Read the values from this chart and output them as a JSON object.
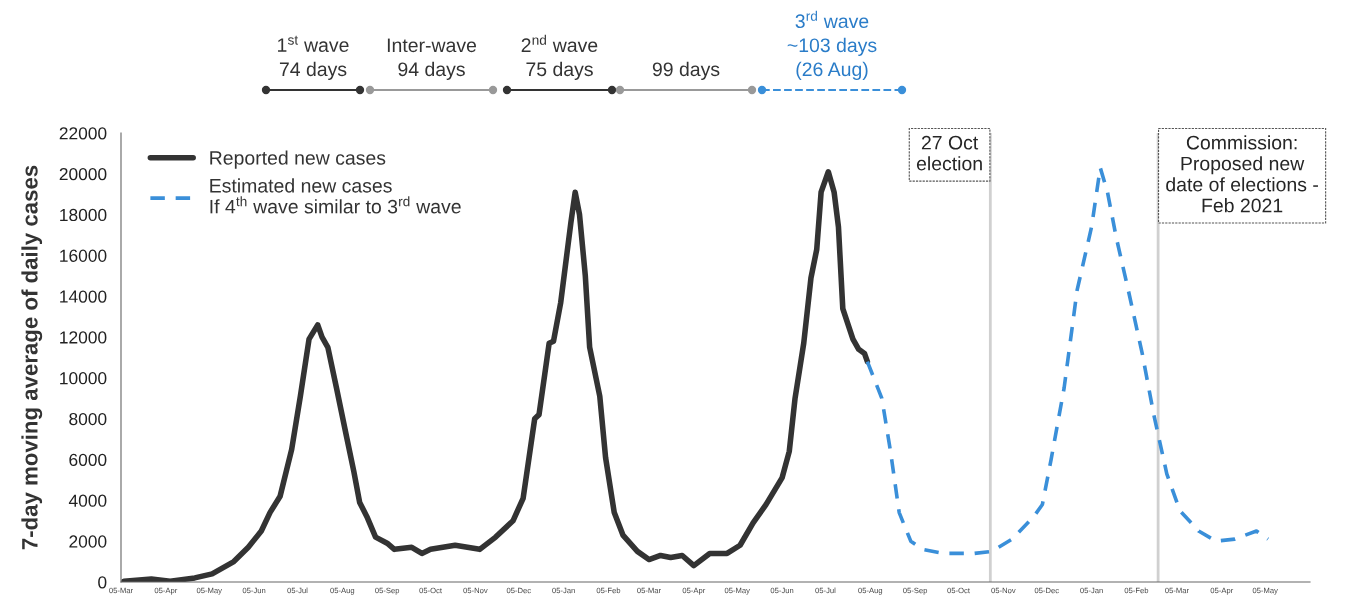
{
  "chart_data": {
    "type": "line",
    "ylabel": "7-day moving average of daily cases",
    "xlim": [
      "2020-03-05",
      "2022-06-05"
    ],
    "ylim": [
      0,
      22000
    ],
    "xticks": [
      {
        "value": "2020-03-05",
        "label": "05-Mar"
      },
      {
        "value": "2020-04-05",
        "label": "05-Apr"
      },
      {
        "value": "2020-05-05",
        "label": "05-May"
      },
      {
        "value": "2020-06-05",
        "label": "05-Jun"
      },
      {
        "value": "2020-07-05",
        "label": "05-Jul"
      },
      {
        "value": "2020-08-05",
        "label": "05-Aug"
      },
      {
        "value": "2020-09-05",
        "label": "05-Sep"
      },
      {
        "value": "2020-10-05",
        "label": "05-Oct"
      },
      {
        "value": "2020-11-05",
        "label": "05-Nov"
      },
      {
        "value": "2020-12-05",
        "label": "05-Dec"
      },
      {
        "value": "2021-01-05",
        "label": "05-Jan"
      },
      {
        "value": "2021-02-05",
        "label": "05-Feb"
      },
      {
        "value": "2021-03-05",
        "label": "05-Mar"
      },
      {
        "value": "2021-04-05",
        "label": "05-Apr"
      },
      {
        "value": "2021-05-05",
        "label": "05-May"
      },
      {
        "value": "2021-06-05",
        "label": "05-Jun"
      },
      {
        "value": "2021-07-05",
        "label": "05-Jul"
      },
      {
        "value": "2021-08-05",
        "label": "05-Aug"
      },
      {
        "value": "2021-09-05",
        "label": "05-Sep"
      },
      {
        "value": "2021-10-05",
        "label": "05-Oct"
      },
      {
        "value": "2021-11-05",
        "label": "05-Nov"
      },
      {
        "value": "2021-12-05",
        "label": "05-Dec"
      },
      {
        "value": "2022-01-05",
        "label": "05-Jan"
      },
      {
        "value": "2022-02-05",
        "label": "05-Feb"
      },
      {
        "value": "2022-03-05",
        "label": "05-Mar"
      },
      {
        "value": "2022-04-05",
        "label": "05-Apr"
      },
      {
        "value": "2022-05-05",
        "label": "05-May"
      }
    ],
    "yticks": [
      0,
      2000,
      4000,
      6000,
      8000,
      10000,
      12000,
      14000,
      16000,
      18000,
      20000,
      22000
    ],
    "legend": "top left",
    "series": [
      {
        "name": "Reported new cases",
        "color": "#333333",
        "line_style": "solid",
        "x": [
          "2020-03-07",
          "2020-03-26",
          "2020-04-08",
          "2020-04-25",
          "2020-05-07",
          "2020-05-22",
          "2020-06-01",
          "2020-06-10",
          "2020-06-16",
          "2020-06-23",
          "2020-07-01",
          "2020-07-07",
          "2020-07-13",
          "2020-07-19",
          "2020-07-22",
          "2020-07-26",
          "2020-08-01",
          "2020-08-08",
          "2020-08-13",
          "2020-08-17",
          "2020-08-22",
          "2020-08-28",
          "2020-09-05",
          "2020-09-10",
          "2020-09-22",
          "2020-09-29",
          "2020-10-05",
          "2020-10-22",
          "2020-11-08",
          "2020-11-19",
          "2020-12-01",
          "2020-12-08",
          "2020-12-16",
          "2020-12-19",
          "2020-12-23",
          "2020-12-26",
          "2020-12-29",
          "2021-01-03",
          "2021-01-10",
          "2021-01-13",
          "2021-01-16",
          "2021-01-20",
          "2021-01-23",
          "2021-01-30",
          "2021-02-03",
          "2021-02-09",
          "2021-02-15",
          "2021-02-25",
          "2021-03-05",
          "2021-03-13",
          "2021-03-20",
          "2021-03-28",
          "2021-04-05",
          "2021-04-16",
          "2021-04-28",
          "2021-05-07",
          "2021-05-16",
          "2021-05-25",
          "2021-06-05",
          "2021-06-10",
          "2021-06-14",
          "2021-06-20",
          "2021-06-25",
          "2021-06-29",
          "2021-07-02",
          "2021-07-07",
          "2021-07-11",
          "2021-07-14",
          "2021-07-17",
          "2021-07-24",
          "2021-07-28",
          "2021-08-01",
          "2021-08-03"
        ],
        "values": [
          40,
          150,
          40,
          200,
          400,
          1000,
          1700,
          2500,
          3400,
          4200,
          6500,
          9100,
          11900,
          12600,
          12000,
          11500,
          9500,
          7100,
          5400,
          3900,
          3200,
          2200,
          1900,
          1600,
          1700,
          1400,
          1600,
          1800,
          1600,
          2200,
          3000,
          4100,
          8000,
          8200,
          10200,
          11700,
          11800,
          13700,
          17600,
          19100,
          18000,
          15000,
          11500,
          9100,
          6100,
          3400,
          2300,
          1500,
          1100,
          1300,
          1200,
          1300,
          800,
          1400,
          1400,
          1800,
          2900,
          3800,
          5100,
          6400,
          9000,
          11700,
          14900,
          16300,
          19100,
          20100,
          19100,
          17400,
          13400,
          11900,
          11400,
          11200,
          10800
        ]
      },
      {
        "name": "Estimated new cases\nIf 4$^{th}$ wave similar to 3$^{rd}$ wave",
        "color": "#3a8fd9",
        "line_style": "dashed",
        "x": [
          "2021-08-03",
          "2021-08-13",
          "2021-08-19",
          "2021-08-25",
          "2021-09-02",
          "2021-09-10",
          "2021-09-25",
          "2021-10-16",
          "2021-10-28",
          "2021-11-11",
          "2021-11-26",
          "2021-12-02",
          "2021-12-08",
          "2021-12-17",
          "2021-12-26",
          "2022-01-05",
          "2022-01-11",
          "2022-01-16",
          "2022-01-22",
          "2022-01-31",
          "2022-02-09",
          "2022-02-17",
          "2022-02-26",
          "2022-03-07",
          "2022-03-20",
          "2022-04-01",
          "2022-04-14",
          "2022-04-29",
          "2022-05-07"
        ],
        "values": [
          10800,
          9000,
          6400,
          3400,
          2000,
          1600,
          1400,
          1400,
          1500,
          2100,
          3200,
          3800,
          6000,
          9500,
          14300,
          17400,
          20300,
          19100,
          16900,
          14100,
          11200,
          8200,
          5300,
          3500,
          2500,
          2000,
          2100,
          2500,
          2100
        ]
      }
    ],
    "ref_lines": [
      {
        "axis": "x",
        "value": "2021-10-27",
        "label": "27 Oct\nelection",
        "color": "#d0d0d0"
      },
      {
        "axis": "x",
        "value": "2022-02-20",
        "label": "Commission:\nProposed new\ndate of elections -\nFeb 2021",
        "color": "#d0d0d0"
      }
    ],
    "annotations": [
      "1$^{st}$ wave",
      "74 days",
      "Inter-wave",
      "94 days",
      "2$^{nd}$ wave",
      "75 days",
      "99 days",
      "3$^{rd}$ wave",
      "~103 days\n(26 Aug)"
    ]
  }
}
